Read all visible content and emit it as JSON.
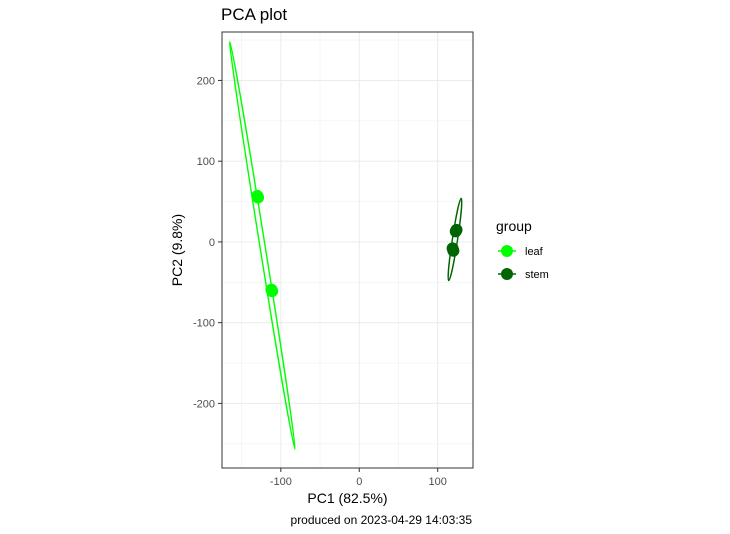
{
  "chart_data": {
    "type": "scatter",
    "title": "PCA plot",
    "xlabel": "PC1 (82.5%)",
    "ylabel": "PC2 (9.8%)",
    "caption": "produced on 2023-04-29 14:03:35",
    "xlim": [
      -175,
      145
    ],
    "ylim": [
      -280,
      260
    ],
    "x_ticks": [
      -100,
      0,
      100
    ],
    "y_ticks": [
      -200,
      -100,
      0,
      100,
      200
    ],
    "x_tick_labels": [
      "-100",
      "0",
      "100"
    ],
    "y_tick_labels": [
      "-200",
      "-100",
      "0",
      "100",
      "200"
    ],
    "grid": true,
    "legend_title": "group",
    "legend_position": "right",
    "series": [
      {
        "name": "leaf",
        "color": "#00FF00",
        "points": [
          {
            "x": -130,
            "y": 57
          },
          {
            "x": -129,
            "y": 55
          },
          {
            "x": -112,
            "y": -59
          },
          {
            "x": -111,
            "y": -61
          }
        ],
        "ellipse": [
          {
            "x": -165,
            "y": 248
          },
          {
            "x": -82,
            "y": -257
          }
        ]
      },
      {
        "name": "stem",
        "color": "#006400",
        "points": [
          {
            "x": 124,
            "y": 15
          },
          {
            "x": 123,
            "y": 13
          },
          {
            "x": 119,
            "y": -8
          },
          {
            "x": 120,
            "y": -11
          }
        ],
        "ellipse": [
          {
            "x": 130,
            "y": 54
          },
          {
            "x": 114,
            "y": -48
          }
        ]
      }
    ]
  }
}
